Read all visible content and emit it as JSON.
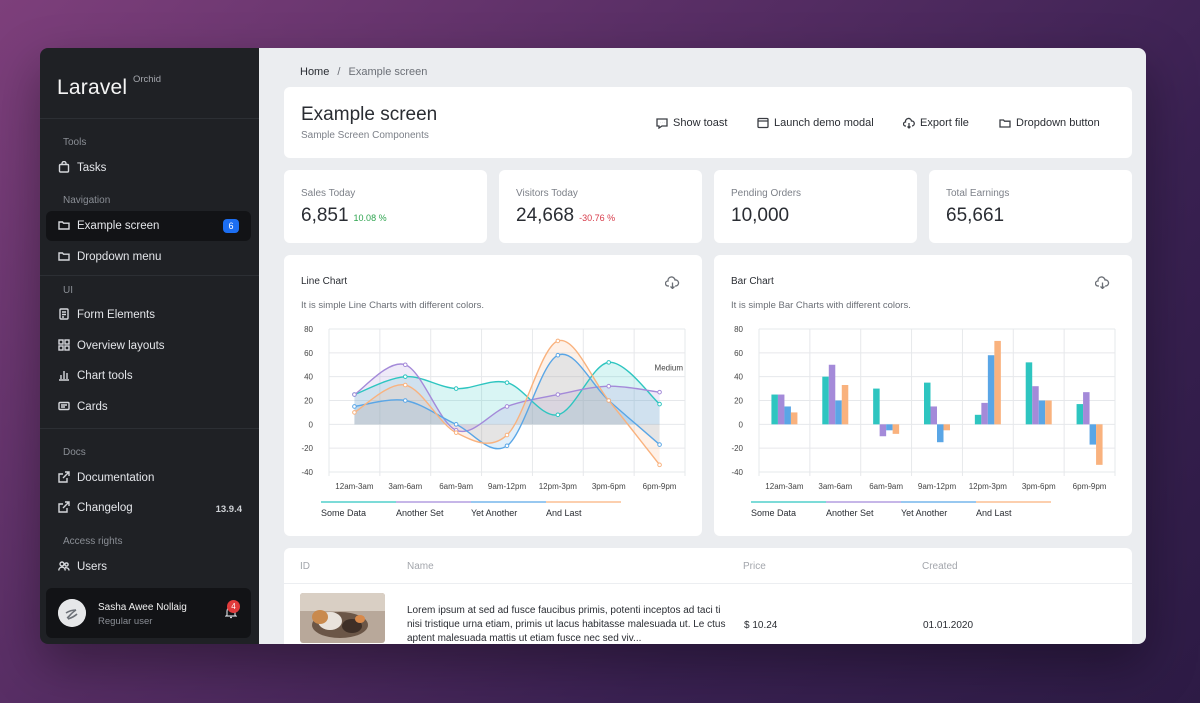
{
  "brand": {
    "name": "Laravel",
    "sup": "Orchid"
  },
  "sidebar": {
    "sections": {
      "tools": "Tools",
      "navigation": "Navigation",
      "ui": "UI",
      "docs": "Docs",
      "access": "Access rights"
    },
    "items": [
      {
        "label": "Tasks",
        "icon": "bag-icon"
      },
      {
        "label": "Example screen",
        "icon": "folder-icon",
        "badge": "6",
        "active": true
      },
      {
        "label": "Dropdown menu",
        "icon": "folder-icon"
      },
      {
        "label": "Form Elements",
        "icon": "note-icon"
      },
      {
        "label": "Overview layouts",
        "icon": "grid-icon"
      },
      {
        "label": "Chart tools",
        "icon": "bar-chart-icon"
      },
      {
        "label": "Cards",
        "icon": "card-icon"
      },
      {
        "label": "Documentation",
        "icon": "external-link-icon"
      },
      {
        "label": "Changelog",
        "icon": "external-link-icon",
        "version": "13.9.4"
      },
      {
        "label": "Users",
        "icon": "users-icon"
      }
    ],
    "user": {
      "name": "Sasha Awee Nollaig",
      "role": "Regular user",
      "notifications": "4"
    }
  },
  "breadcrumb": {
    "home": "Home",
    "separator": "/",
    "current": "Example screen"
  },
  "header": {
    "title": "Example screen",
    "subtitle": "Sample Screen Components",
    "buttons": [
      {
        "label": "Show toast",
        "icon": "message-icon"
      },
      {
        "label": "Launch demo modal",
        "icon": "window-icon"
      },
      {
        "label": "Export file",
        "icon": "cloud-download-icon"
      },
      {
        "label": "Dropdown button",
        "icon": "folder-icon"
      }
    ]
  },
  "metrics": [
    {
      "label": "Sales Today",
      "value": "6,851",
      "delta": "10.08 %",
      "delta_color": "#2ea44f"
    },
    {
      "label": "Visitors Today",
      "value": "24,668",
      "delta": "-30.76 %",
      "delta_color": "#d73a49"
    },
    {
      "label": "Pending Orders",
      "value": "10,000",
      "delta": ""
    },
    {
      "label": "Total Earnings",
      "value": "65,661",
      "delta": ""
    }
  ],
  "line_card": {
    "title": "Line Chart",
    "desc": "It is simple Line Charts with different colors."
  },
  "bar_card": {
    "title": "Bar Chart",
    "desc": "It is simple Bar Charts with different colors."
  },
  "chart_data": [
    {
      "type": "line",
      "title": "Line Chart",
      "categories": [
        "12am-3am",
        "3am-6am",
        "6am-9am",
        "9am-12pm",
        "12pm-3pm",
        "3pm-6pm",
        "6pm-9pm"
      ],
      "ylim": [
        -40,
        80
      ],
      "yticks": [
        80,
        60,
        40,
        20,
        0,
        -20,
        -40
      ],
      "annotation": "Medium",
      "grid": true,
      "legend": "bottom",
      "series": [
        {
          "name": "Some Data",
          "color": "#2ec5c0",
          "values": [
            25,
            40,
            30,
            35,
            8,
            52,
            17
          ]
        },
        {
          "name": "Another Set",
          "color": "#a48ad9",
          "values": [
            25,
            50,
            -5,
            15,
            25,
            32,
            27
          ]
        },
        {
          "name": "Yet Another",
          "color": "#5aa6e6",
          "values": [
            15,
            20,
            0,
            -18,
            58,
            20,
            -17
          ]
        },
        {
          "name": "And Last",
          "color": "#f9b27e",
          "values": [
            10,
            33,
            -7,
            -9,
            70,
            20,
            -34
          ]
        }
      ]
    },
    {
      "type": "bar",
      "title": "Bar Chart",
      "categories": [
        "12am-3am",
        "3am-6am",
        "6am-9am",
        "9am-12pm",
        "12pm-3pm",
        "3pm-6pm",
        "6pm-9pm"
      ],
      "ylim": [
        -40,
        80
      ],
      "yticks": [
        80,
        60,
        40,
        20,
        0,
        -20,
        -40
      ],
      "grid": true,
      "legend": "bottom",
      "series": [
        {
          "name": "Some Data",
          "color": "#2ec5c0",
          "values": [
            25,
            40,
            30,
            35,
            8,
            52,
            17
          ]
        },
        {
          "name": "Another Set",
          "color": "#a48ad9",
          "values": [
            25,
            50,
            -10,
            15,
            18,
            32,
            27
          ]
        },
        {
          "name": "Yet Another",
          "color": "#5aa6e6",
          "values": [
            15,
            20,
            -5,
            -15,
            58,
            20,
            -17
          ]
        },
        {
          "name": "And Last",
          "color": "#f9b27e",
          "values": [
            10,
            33,
            -8,
            -5,
            70,
            20,
            -34
          ]
        }
      ]
    }
  ],
  "table": {
    "headers": {
      "id": "ID",
      "name": "Name",
      "price": "Price",
      "created": "Created"
    },
    "rows": [
      {
        "name": "Lorem ipsum at sed ad fusce faucibus primis, potenti inceptos ad taci ti nisi tristique urna etiam, primis ut lacus habitasse malesuada ut. Le ctus aptent malesuada mattis ut etiam fusce nec sed viv...",
        "price": "$ 10.24",
        "created": "01.01.2020"
      }
    ]
  }
}
